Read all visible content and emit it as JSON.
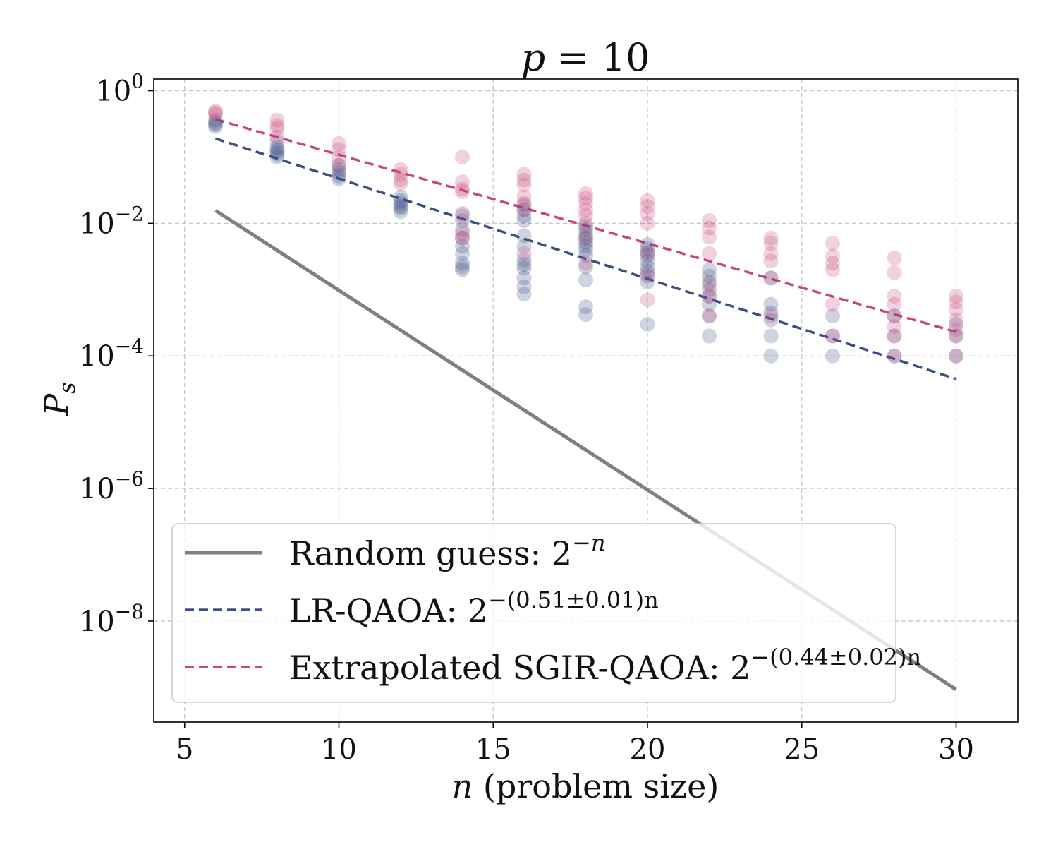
{
  "chart_data": {
    "type": "scatter",
    "title": {
      "base": "p",
      "rest": " = 10"
    },
    "xlabel": {
      "var": "n",
      "rest": " (problem size)"
    },
    "ylabel": {
      "base": "P",
      "sub": "s"
    },
    "xscale": "linear",
    "yscale": "log",
    "xlim": [
      4,
      32
    ],
    "ylim": [
      3e-10,
      1.5
    ],
    "xticks": [
      5,
      10,
      15,
      20,
      25,
      30
    ],
    "yticks": [
      {
        "value": 1,
        "mantissa": "10",
        "exp": "0"
      },
      {
        "value": 0.01,
        "mantissa": "10",
        "exp": "−2"
      },
      {
        "value": 0.0001,
        "mantissa": "10",
        "exp": "−4"
      },
      {
        "value": 1e-06,
        "mantissa": "10",
        "exp": "−6"
      },
      {
        "value": 1e-08,
        "mantissa": "10",
        "exp": "−8"
      }
    ],
    "grid": true,
    "legend_position": "lower-left",
    "legend": [
      {
        "key": "random",
        "label": "Random guess: ",
        "base": "2",
        "exp": "−n"
      },
      {
        "key": "lr",
        "label": "LR-QAOA: ",
        "base": "2",
        "exp": "−(0.51±0.01)n"
      },
      {
        "key": "sgir",
        "label": "Extrapolated SGIR-QAOA: ",
        "base": "2",
        "exp": "−(0.44±0.02)n"
      }
    ],
    "colors": {
      "random": "#7f7f7f",
      "lr": "#3b4f85",
      "sgir": "#c8467a"
    },
    "lines": {
      "random": {
        "x": [
          6,
          30
        ],
        "y": [
          0.015625,
          9.3e-10
        ],
        "style": "solid"
      },
      "lr": {
        "x": [
          6,
          30
        ],
        "y": [
          0.19,
          4.5e-05
        ],
        "style": "dashed"
      },
      "sgir": {
        "x": [
          6,
          30
        ],
        "y": [
          0.37,
          0.00023
        ],
        "style": "dashed"
      }
    },
    "series": [
      {
        "name": "LR-QAOA",
        "color": "#3b4f85",
        "points": [
          {
            "n": 6,
            "ps": [
              0.36,
              0.33,
              0.31,
              0.29
            ]
          },
          {
            "n": 8,
            "ps": [
              0.17,
              0.14,
              0.13,
              0.12,
              0.11,
              0.1
            ]
          },
          {
            "n": 10,
            "ps": [
              0.075,
              0.065,
              0.058,
              0.052,
              0.047
            ]
          },
          {
            "n": 12,
            "ps": [
              0.025,
              0.022,
              0.02,
              0.018,
              0.017,
              0.015
            ]
          },
          {
            "n": 14,
            "ps": [
              0.014,
              0.011,
              0.008,
              0.006,
              0.0045,
              0.0035,
              0.0025,
              0.0022,
              0.002
            ]
          },
          {
            "n": 16,
            "ps": [
              0.019,
              0.016,
              0.013,
              0.011,
              0.0065,
              0.0045,
              0.0028,
              0.0024,
              0.0021,
              0.0015,
              0.0011,
              0.00085
            ]
          },
          {
            "n": 18,
            "ps": [
              0.009,
              0.008,
              0.0068,
              0.006,
              0.0052,
              0.0046,
              0.004,
              0.0033,
              0.0022,
              0.0014,
              0.00055,
              0.00042
            ]
          },
          {
            "n": 20,
            "ps": [
              0.0048,
              0.0042,
              0.0036,
              0.0032,
              0.0027,
              0.0022,
              0.0019,
              0.0016,
              0.0013,
              0.0003
            ]
          },
          {
            "n": 22,
            "ps": [
              0.002,
              0.0016,
              0.0013,
              0.001,
              0.0008,
              0.0006,
              0.0004,
              0.0002
            ]
          },
          {
            "n": 24,
            "ps": [
              0.0015,
              0.0006,
              0.00045,
              0.00035,
              0.0002,
              0.0001
            ]
          },
          {
            "n": 26,
            "ps": [
              0.0004,
              0.0002,
              0.0001
            ]
          },
          {
            "n": 28,
            "ps": [
              0.0004,
              0.0002,
              0.0001
            ]
          },
          {
            "n": 30,
            "ps": [
              0.0003,
              0.0002,
              0.0001
            ]
          }
        ]
      },
      {
        "name": "SGIR-QAOA",
        "color": "#c8467a",
        "points": [
          {
            "n": 6,
            "ps": [
              0.49,
              0.47,
              0.44
            ]
          },
          {
            "n": 8,
            "ps": [
              0.36,
              0.3,
              0.27,
              0.2
            ]
          },
          {
            "n": 10,
            "ps": [
              0.16,
              0.13,
              0.1,
              0.075
            ]
          },
          {
            "n": 12,
            "ps": [
              0.065,
              0.055,
              0.045,
              0.04
            ]
          },
          {
            "n": 14,
            "ps": [
              0.1,
              0.042,
              0.033,
              0.03,
              0.013,
              0.007,
              0.006
            ]
          },
          {
            "n": 16,
            "ps": [
              0.055,
              0.045,
              0.038,
              0.025,
              0.02,
              0.016,
              0.0035
            ]
          },
          {
            "n": 18,
            "ps": [
              0.028,
              0.024,
              0.02,
              0.016,
              0.013,
              0.01,
              0.006,
              0.0025
            ]
          },
          {
            "n": 20,
            "ps": [
              0.022,
              0.018,
              0.014,
              0.01,
              0.0036,
              0.0017,
              0.0007
            ]
          },
          {
            "n": 22,
            "ps": [
              0.011,
              0.0085,
              0.0062,
              0.0035,
              0.0012,
              0.0008,
              0.0004
            ]
          },
          {
            "n": 24,
            "ps": [
              0.006,
              0.005,
              0.0035,
              0.0027,
              0.0015,
              0.0004
            ]
          },
          {
            "n": 26,
            "ps": [
              0.005,
              0.0032,
              0.0025,
              0.002,
              0.0006,
              0.0002
            ]
          },
          {
            "n": 28,
            "ps": [
              0.003,
              0.0018,
              0.0008,
              0.0006,
              0.0004,
              0.00028,
              0.0002,
              0.0001
            ]
          },
          {
            "n": 30,
            "ps": [
              0.0008,
              0.00065,
              0.0005,
              0.00035,
              0.00025,
              0.0002,
              0.0001
            ]
          }
        ]
      }
    ]
  }
}
